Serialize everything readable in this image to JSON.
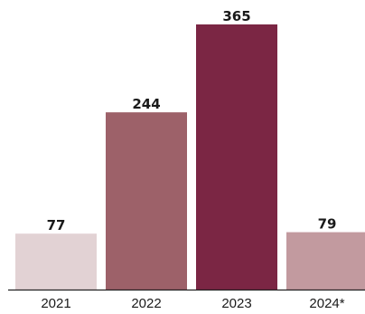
{
  "chart_data": {
    "type": "bar",
    "categories": [
      "2021",
      "2022",
      "2023",
      "2024*"
    ],
    "values": [
      77,
      244,
      365,
      79
    ],
    "data_labels": [
      "77",
      "244",
      "365",
      "79"
    ],
    "bar_colors": [
      "#e2d2d4",
      "#9d6169",
      "#7b2644",
      "#c29a9f"
    ],
    "axis_color": "#222222",
    "title": "",
    "xlabel": "",
    "ylabel": "",
    "ylim": [
      0,
      365
    ],
    "grid": false,
    "legend": "none"
  }
}
